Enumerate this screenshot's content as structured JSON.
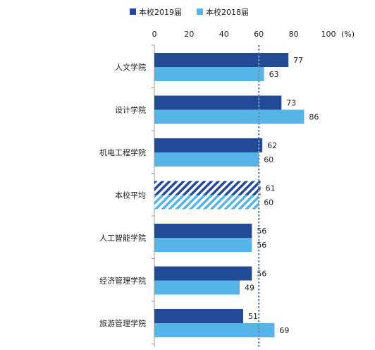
{
  "chart_data": {
    "type": "bar",
    "orientation": "horizontal",
    "categories": [
      "人文学院",
      "设计学院",
      "机电工程学院",
      "本校平均",
      "人工智能学院",
      "经济管理学院",
      "旅游管理学院"
    ],
    "series": [
      {
        "name": "本校2019届",
        "values": [
          77,
          73,
          62,
          61,
          56,
          56,
          51
        ]
      },
      {
        "name": "本校2018届",
        "values": [
          63,
          86,
          60,
          60,
          56,
          49,
          69
        ]
      }
    ],
    "highlight_category": "本校平均",
    "highlight_style": "hatched",
    "reference_line": 60,
    "xlim": [
      0,
      100
    ],
    "x_ticks": [
      "0",
      "20",
      "40",
      "60",
      "80",
      "100"
    ],
    "x_unit": "(%)",
    "axis_position": "top",
    "legend_position": "top",
    "grid": false,
    "colors": {
      "series_2019": "#234A96",
      "series_2018": "#56B4E6",
      "reference_line": "#6E8EB4"
    }
  }
}
